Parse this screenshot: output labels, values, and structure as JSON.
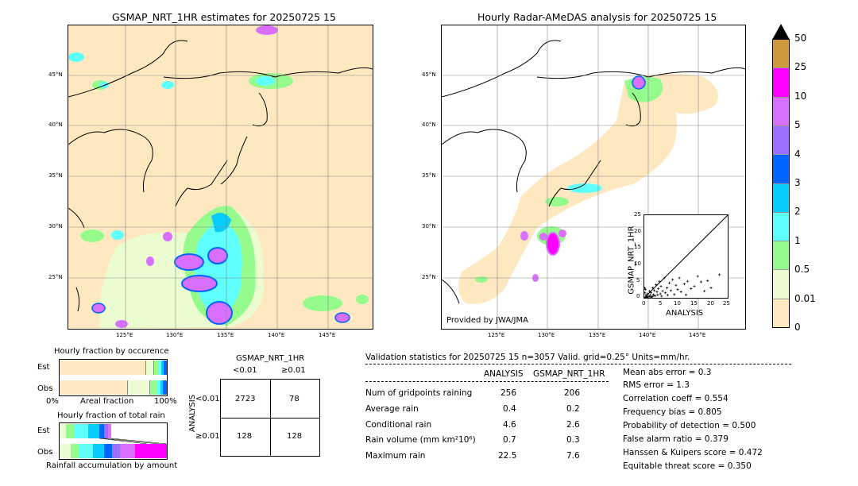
{
  "titles": {
    "left": "GSMAP_NRT_1HR estimates for 20250725 15",
    "right": "Hourly Radar-AMeDAS analysis for 20250725 15"
  },
  "map_ticks": {
    "lat": [
      "45°N",
      "40°N",
      "35°N",
      "30°N",
      "25°N"
    ],
    "lon": [
      "125°E",
      "130°E",
      "135°E",
      "140°E",
      "145°E"
    ]
  },
  "provided_by": "Provided by JWA/JMA",
  "colorbar": {
    "levels": [
      "0",
      "0.01",
      "0.5",
      "1",
      "2",
      "3",
      "4",
      "5",
      "10",
      "25",
      "50"
    ],
    "colors": [
      "#fde8c0",
      "#ebfdd0",
      "#96fb8d",
      "#5ffffd",
      "#06cbfd",
      "#0066ff",
      "#9b70ff",
      "#d96fff",
      "#ff00ff",
      "#cc9a3a"
    ]
  },
  "scatter": {
    "xlabel": "ANALYSIS",
    "ylabel": "GSMAP_NRT_1HR",
    "ticks": [
      "0",
      "5",
      "10",
      "15",
      "20",
      "25"
    ]
  },
  "occurrence": {
    "title": "Hourly fraction by occurence",
    "est_label": "Est",
    "obs_label": "Obs",
    "axis_left": "0%",
    "axis_mid": "Areal fraction",
    "axis_right": "100%"
  },
  "total_rain": {
    "title": "Hourly fraction of total rain",
    "est_label": "Est",
    "obs_label": "Obs",
    "footer": "Rainfall accumulation by amount"
  },
  "contingency": {
    "title": "GSMAP_NRT_1HR",
    "col_lt": "<0.01",
    "col_ge": "≥0.01",
    "row_axis": "ANALYSIS",
    "row_lt": "<0.01",
    "row_ge": "≥0.01",
    "a": "2723",
    "b": "78",
    "c": "128",
    "d": "128"
  },
  "validation": {
    "header": "Validation statistics for 20250725 15  n=3057 Valid. grid=0.25° Units=mm/hr.",
    "col1": "ANALYSIS",
    "col2": "GSMAP_NRT_1HR",
    "rows": [
      {
        "label": "Num of gridpoints raining",
        "a": "256",
        "g": "206"
      },
      {
        "label": "Average rain",
        "a": "0.4",
        "g": "0.2"
      },
      {
        "label": "Conditional rain",
        "a": "4.6",
        "g": "2.6"
      },
      {
        "label": "Rain volume (mm km²10⁶)",
        "a": "0.7",
        "g": "0.3"
      },
      {
        "label": "Maximum rain",
        "a": "22.5",
        "g": "7.6"
      }
    ],
    "scores": [
      "Mean abs error =    0.3",
      "RMS error =    1.3",
      "Correlation coeff =  0.554",
      "Frequency bias =  0.805",
      "Probability of detection =  0.500",
      "False alarm ratio =  0.379",
      "Hanssen & Kuipers score =  0.472",
      "Equitable threat score =  0.350"
    ]
  },
  "chart_data": {
    "type": "scatter",
    "xlabel": "ANALYSIS",
    "ylabel": "GSMAP_NRT_1HR",
    "xlim": [
      0,
      25
    ],
    "ylim": [
      0,
      25
    ],
    "points": [
      [
        0.3,
        0.2
      ],
      [
        0.5,
        0.8
      ],
      [
        0.8,
        0.3
      ],
      [
        1,
        1.2
      ],
      [
        1.2,
        0.5
      ],
      [
        1.5,
        2
      ],
      [
        1.8,
        0.8
      ],
      [
        2,
        1.5
      ],
      [
        2.2,
        0.3
      ],
      [
        2.5,
        3
      ],
      [
        2.8,
        1
      ],
      [
        3,
        2.2
      ],
      [
        3.2,
        0.6
      ],
      [
        3.5,
        4
      ],
      [
        3.8,
        1.8
      ],
      [
        4,
        0.9
      ],
      [
        4.2,
        2.8
      ],
      [
        4.5,
        5
      ],
      [
        4.8,
        1.2
      ],
      [
        5,
        3.5
      ],
      [
        5.2,
        0.5
      ],
      [
        5.5,
        2
      ],
      [
        6,
        6
      ],
      [
        6.3,
        1.5
      ],
      [
        6.8,
        3
      ],
      [
        7,
        0.8
      ],
      [
        7.5,
        4.5
      ],
      [
        8,
        2.2
      ],
      [
        8.5,
        5.5
      ],
      [
        9,
        1
      ],
      [
        9.5,
        3.8
      ],
      [
        10,
        2.5
      ],
      [
        10.5,
        6
      ],
      [
        11,
        1.8
      ],
      [
        12,
        4.2
      ],
      [
        12.5,
        0.9
      ],
      [
        13,
        5
      ],
      [
        14,
        2.8
      ],
      [
        15,
        3.5
      ],
      [
        16,
        6.5
      ],
      [
        17,
        4.8
      ],
      [
        18,
        2
      ],
      [
        19,
        5.2
      ],
      [
        20,
        3
      ],
      [
        22.5,
        7
      ],
      [
        0.6,
        0.1
      ],
      [
        1.1,
        0.2
      ],
      [
        1.6,
        0.4
      ],
      [
        2.1,
        0.1
      ],
      [
        2.6,
        0.5
      ],
      [
        0.2,
        1.5
      ],
      [
        0.4,
        2.5
      ],
      [
        0.1,
        3
      ]
    ]
  }
}
